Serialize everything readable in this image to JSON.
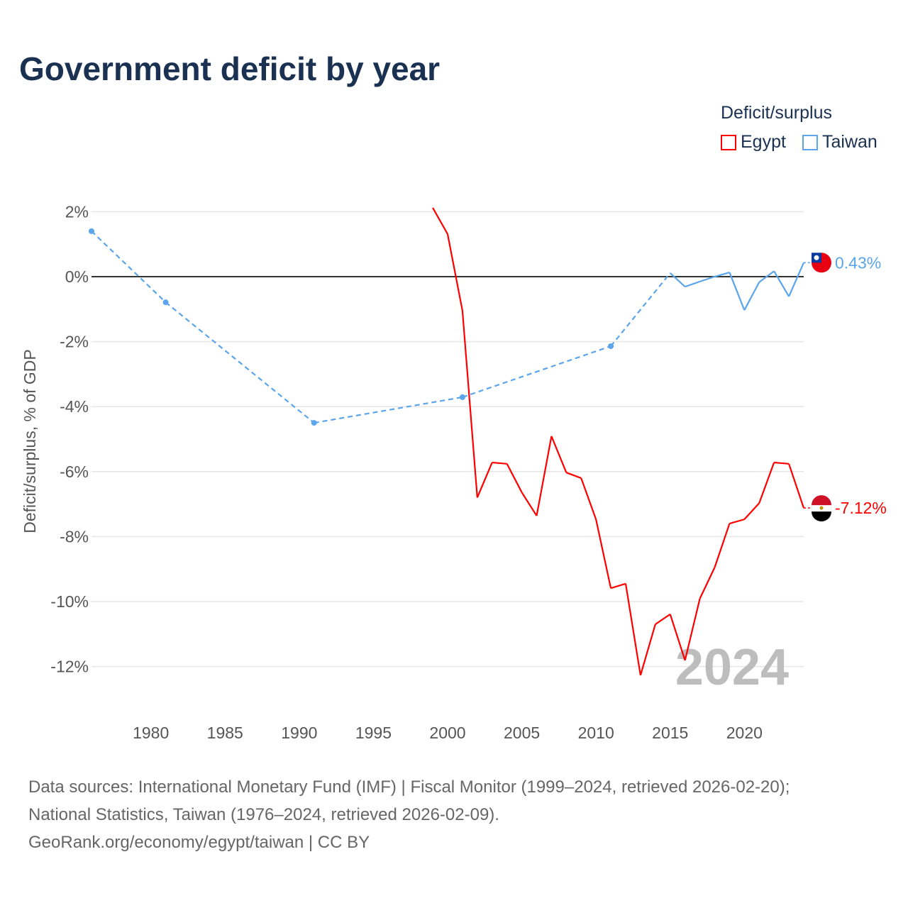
{
  "title": "Government deficit by year",
  "legend": {
    "title": "Deficit/surplus",
    "items": [
      {
        "label": "Egypt",
        "color": "#ff0000"
      },
      {
        "label": "Taiwan",
        "color": "#5aa5eb"
      }
    ]
  },
  "footer": {
    "line1": "Data sources: International Monetary Fund (IMF) | Fiscal Monitor (1999–2024, retrieved 2026-02-20);",
    "line2": "National Statistics, Taiwan (1976–2024, retrieved 2026-02-09).",
    "line3": "GeoRank.org/economy/egypt/taiwan | CC BY"
  },
  "chart_data": {
    "type": "line",
    "title": "Government deficit by year",
    "ylabel": "Deficit/surplus, % of GDP",
    "xlabel": "",
    "xlim": [
      1976,
      2024
    ],
    "ylim": [
      -13,
      2.5
    ],
    "xticks": [
      1980,
      1985,
      1990,
      1995,
      2000,
      2005,
      2010,
      2015,
      2020
    ],
    "yticks": [
      {
        "v": 2,
        "label": "2%"
      },
      {
        "v": 0,
        "label": "0%"
      },
      {
        "v": -2,
        "label": "-2%"
      },
      {
        "v": -4,
        "label": "-4%"
      },
      {
        "v": -6,
        "label": "-6%"
      },
      {
        "v": -8,
        "label": "-8%"
      },
      {
        "v": -10,
        "label": "-10%"
      },
      {
        "v": -12,
        "label": "-12%"
      }
    ],
    "watermark": "2024",
    "series": [
      {
        "name": "Egypt",
        "color": "#ff0000",
        "end_label": "-7.12%",
        "points": [
          [
            1999,
            2.12
          ],
          [
            2000,
            1.31
          ],
          [
            2001,
            -1.05
          ],
          [
            2002,
            -6.8
          ],
          [
            2003,
            -5.72
          ],
          [
            2004,
            -5.76
          ],
          [
            2005,
            -6.64
          ],
          [
            2006,
            -7.36
          ],
          [
            2007,
            -4.91
          ],
          [
            2008,
            -6.03
          ],
          [
            2009,
            -6.2
          ],
          [
            2010,
            -7.47
          ],
          [
            2011,
            -9.59
          ],
          [
            2012,
            -9.45
          ],
          [
            2013,
            -12.27
          ],
          [
            2014,
            -10.7
          ],
          [
            2015,
            -10.39
          ],
          [
            2016,
            -11.81
          ],
          [
            2017,
            -9.91
          ],
          [
            2018,
            -8.95
          ],
          [
            2019,
            -7.6
          ],
          [
            2020,
            -7.47
          ],
          [
            2021,
            -6.97
          ],
          [
            2022,
            -5.72
          ],
          [
            2023,
            -5.76
          ],
          [
            2024,
            -7.12
          ]
        ]
      },
      {
        "name": "Taiwan",
        "color": "#5aa5eb",
        "end_label": "0.43%",
        "points": [
          [
            1976,
            1.4
          ],
          [
            1981,
            -0.79
          ],
          [
            1991,
            -4.5
          ],
          [
            2001,
            -3.71
          ],
          [
            2011,
            -2.14
          ],
          [
            2015,
            0.11
          ],
          [
            2016,
            -0.31
          ],
          [
            2017,
            -0.15
          ],
          [
            2018,
            0.0
          ],
          [
            2019,
            0.13
          ],
          [
            2020,
            -1.03
          ],
          [
            2021,
            -0.17
          ],
          [
            2022,
            0.17
          ],
          [
            2023,
            -0.61
          ],
          [
            2024,
            0.43
          ]
        ]
      }
    ]
  }
}
